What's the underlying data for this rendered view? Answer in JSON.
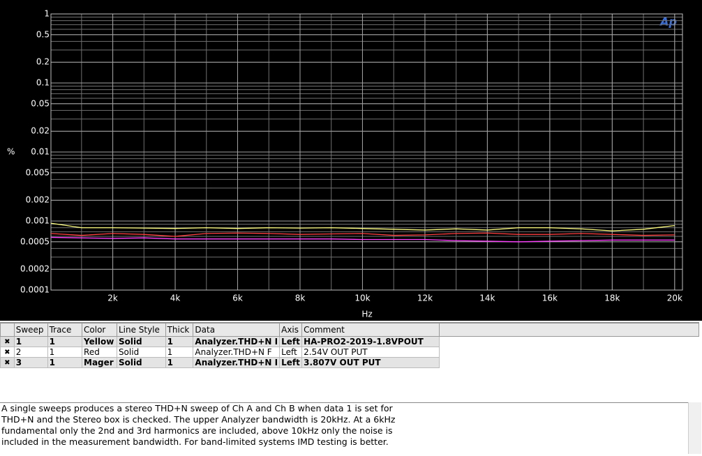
{
  "chart_data": {
    "type": "line",
    "logo": "Ap",
    "ylabel": "%",
    "xlabel": "Hz",
    "x": [
      20,
      1000,
      2000,
      3000,
      4000,
      5000,
      6000,
      7000,
      8000,
      9000,
      10000,
      11000,
      12000,
      13000,
      14000,
      15000,
      16000,
      17000,
      18000,
      19000,
      20000
    ],
    "series": [
      {
        "color": "#ffff80",
        "values": [
          0.00093,
          0.0008,
          0.0008,
          0.00079,
          0.00078,
          0.0008,
          0.00078,
          0.0008,
          0.00079,
          0.0008,
          0.00078,
          0.00076,
          0.00074,
          0.00077,
          0.00074,
          0.0008,
          0.0008,
          0.00077,
          0.00072,
          0.00076,
          0.00086
        ]
      },
      {
        "color": "#ff4040",
        "values": [
          0.00066,
          0.00062,
          0.00066,
          0.00064,
          0.0006,
          0.00066,
          0.00067,
          0.00066,
          0.00064,
          0.00065,
          0.00066,
          0.00062,
          0.00063,
          0.00066,
          0.00067,
          0.00064,
          0.00064,
          0.00066,
          0.00064,
          0.00062,
          0.00063
        ]
      },
      {
        "color": "#ff40ff",
        "values": [
          0.00058,
          0.00057,
          0.00056,
          0.00057,
          0.00055,
          0.00055,
          0.00055,
          0.00055,
          0.00055,
          0.00055,
          0.00054,
          0.00054,
          0.00054,
          0.00052,
          0.00051,
          0.0005,
          0.00051,
          0.00052,
          0.00053,
          0.00053,
          0.00053
        ]
      }
    ],
    "xlim": [
      20,
      20250
    ],
    "xticks": [
      {
        "value": 2000,
        "label": "2k"
      },
      {
        "value": 4000,
        "label": "4k"
      },
      {
        "value": 6000,
        "label": "6k"
      },
      {
        "value": 8000,
        "label": "8k"
      },
      {
        "value": 10000,
        "label": "10k"
      },
      {
        "value": 12000,
        "label": "12k"
      },
      {
        "value": 14000,
        "label": "14k"
      },
      {
        "value": 16000,
        "label": "16k"
      },
      {
        "value": 18000,
        "label": "18k"
      },
      {
        "value": 20000,
        "label": "20k"
      }
    ],
    "ylim": [
      0.0001,
      1
    ],
    "yticks": [
      1,
      0.5,
      0.2,
      0.1,
      0.05,
      0.02,
      0.01,
      0.005,
      0.002,
      0.001,
      0.0005,
      0.0002,
      0.0001
    ],
    "log_y": true,
    "grid": true
  },
  "table": {
    "headers": [
      "Sweep",
      "Trace",
      "Color",
      "Line Style",
      "Thick",
      "Data",
      "Axis",
      "Comment"
    ],
    "rows": [
      [
        "1",
        "1",
        "Yellow",
        "Solid",
        "1",
        "Analyzer.THD+N I",
        "Left",
        "HA-PRO2-2019-1.8VPOUT"
      ],
      [
        "2",
        "1",
        "Red",
        "Solid",
        "1",
        "Analyzer.THD+N F",
        "Left",
        "2.54V OUT PUT"
      ],
      [
        "3",
        "1",
        "Mager",
        "Solid",
        "1",
        "Analyzer.THD+N I",
        "Left",
        "3.807V OUT PUT"
      ]
    ]
  },
  "notes": {
    "lines": [
      "A single sweeps produces a stereo THD+N sweep of Ch A and Ch B when data 1 is set for",
      "THD+N and the Stereo box is checked.  The upper Analyzer bandwidth is 20kHz.  At a 6kHz",
      "fundamental only the 2nd and 3rd harmonics are included, above 10kHz only the noise is",
      "included in the measurement bandwidth.  For band-limited systems IMD testing is better."
    ]
  }
}
